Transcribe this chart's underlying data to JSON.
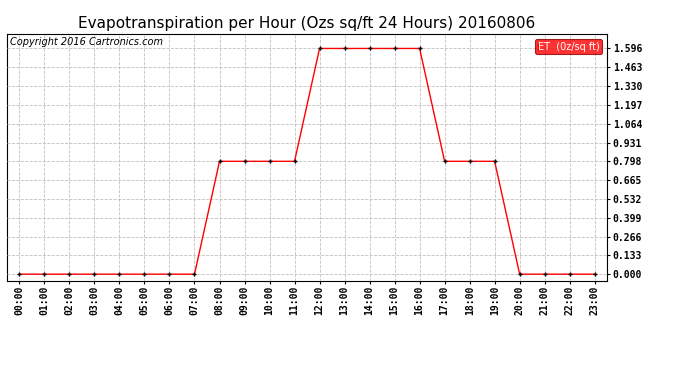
{
  "title": "Evapotranspiration per Hour (Ozs sq/ft 24 Hours) 20160806",
  "copyright": "Copyright 2016 Cartronics.com",
  "legend_label": "ET  (0z/sq ft)",
  "line_color": "#FF0000",
  "marker_color": "#000000",
  "background_color": "#FFFFFF",
  "grid_color": "#C0C0C0",
  "hours": [
    "00:00",
    "01:00",
    "02:00",
    "03:00",
    "04:00",
    "05:00",
    "06:00",
    "07:00",
    "08:00",
    "09:00",
    "10:00",
    "11:00",
    "12:00",
    "13:00",
    "14:00",
    "15:00",
    "16:00",
    "17:00",
    "18:00",
    "19:00",
    "20:00",
    "21:00",
    "22:00",
    "23:00"
  ],
  "values": [
    0.0,
    0.0,
    0.0,
    0.0,
    0.0,
    0.0,
    0.0,
    0.0,
    0.798,
    0.798,
    0.798,
    0.798,
    1.596,
    1.596,
    1.596,
    1.596,
    1.596,
    0.798,
    0.798,
    0.798,
    0.0,
    0.0,
    0.0,
    0.0
  ],
  "yticks": [
    0.0,
    0.133,
    0.266,
    0.399,
    0.532,
    0.665,
    0.798,
    0.931,
    1.064,
    1.197,
    1.33,
    1.463,
    1.596
  ],
  "ylim": [
    -0.05,
    1.7
  ],
  "title_fontsize": 11,
  "axis_fontsize": 7,
  "copyright_fontsize": 7,
  "legend_fontsize": 7
}
